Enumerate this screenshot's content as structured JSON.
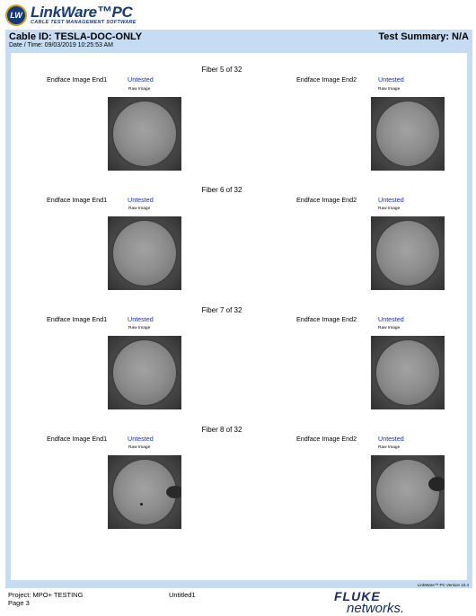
{
  "brand": {
    "logo_badge": "LW",
    "name": "LinkWare™PC",
    "tagline": "CABLE TEST MANAGEMENT SOFTWARE"
  },
  "report": {
    "cable_id": "Cable ID: TESLA-DOC-ONLY",
    "datetime": "Date / Time: 09/03/2019  10:25:53 AM",
    "test_summary": "Test Summary: N/A",
    "version": "LinkWare™ PC Version 10.4"
  },
  "fibers": [
    {
      "title": "Fiber 5 of 32",
      "end1_label": "Endface Image End1",
      "end1_status": "Untested",
      "end1_raw": "Raw Image",
      "end2_label": "Endface Image End2",
      "end2_status": "Untested",
      "end2_raw": "Raw Image"
    },
    {
      "title": "Fiber 6 of 32",
      "end1_label": "Endface Image End1",
      "end1_status": "Untested",
      "end1_raw": "Raw Image",
      "end2_label": "Endface Image End2",
      "end2_status": "Untested",
      "end2_raw": "Raw Image"
    },
    {
      "title": "Fiber 7 of 32",
      "end1_label": "Endface Image End1",
      "end1_status": "Untested",
      "end1_raw": "Raw Image",
      "end2_label": "Endface Image End2",
      "end2_status": "Untested",
      "end2_raw": "Raw Image"
    },
    {
      "title": "Fiber 8 of 32",
      "end1_label": "Endface Image End1",
      "end1_status": "Untested",
      "end1_raw": "Raw Image",
      "end2_label": "Endface Image End2",
      "end2_status": "Untested",
      "end2_raw": "Raw Image"
    }
  ],
  "footer": {
    "project": "Project: MPO+ TESTING",
    "page": "Page 3",
    "file": "Untitled1",
    "logo_line1": "FLUKE",
    "logo_line2": "networks."
  },
  "colors": {
    "frame": "#c6dcf3",
    "status": "#1a2bd6",
    "brand": "#173a7a"
  }
}
